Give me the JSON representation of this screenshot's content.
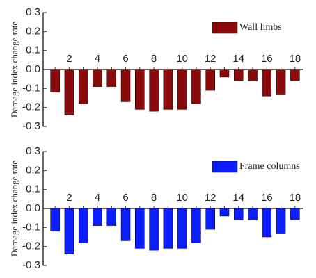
{
  "chart_data": [
    {
      "type": "bar",
      "ylabel": "Damage index change rate",
      "categories": [
        null,
        "2",
        null,
        "4",
        null,
        "6",
        null,
        "8",
        null,
        "10",
        null,
        "12",
        null,
        "14",
        null,
        "16",
        null,
        "18"
      ],
      "series": [
        {
          "name": "Wall limbs",
          "color": "#8b0a0a",
          "values": [
            -0.12,
            -0.24,
            -0.18,
            -0.09,
            -0.09,
            -0.17,
            -0.21,
            -0.22,
            -0.21,
            -0.21,
            -0.18,
            -0.11,
            -0.04,
            -0.06,
            -0.06,
            -0.14,
            -0.13,
            -0.06
          ]
        }
      ],
      "ylim": [
        -0.3,
        0.3
      ],
      "yticks": [
        -0.3,
        -0.2,
        -0.1,
        {
          "value": 0,
          "label": "0.0"
        },
        0.1,
        0.2,
        0.3
      ],
      "legend": "upper right"
    },
    {
      "type": "bar",
      "ylabel": "Damage index change rate",
      "categories": [
        null,
        "2",
        null,
        "4",
        null,
        "6",
        null,
        "8",
        null,
        "10",
        null,
        "12",
        null,
        "14",
        null,
        "16",
        null,
        "18"
      ],
      "series": [
        {
          "name": "Frame columns",
          "color": "#0a1eff",
          "values": [
            -0.12,
            -0.24,
            -0.18,
            -0.09,
            -0.09,
            -0.17,
            -0.21,
            -0.22,
            -0.21,
            -0.21,
            -0.18,
            -0.11,
            -0.04,
            -0.06,
            -0.06,
            -0.15,
            -0.13,
            -0.06
          ]
        }
      ],
      "ylim": [
        -0.3,
        0.3
      ],
      "yticks": [
        -0.3,
        -0.2,
        -0.1,
        {
          "value": 0,
          "label": "0.0"
        },
        0.1,
        0.2,
        0.3
      ],
      "legend": "upper right"
    }
  ]
}
